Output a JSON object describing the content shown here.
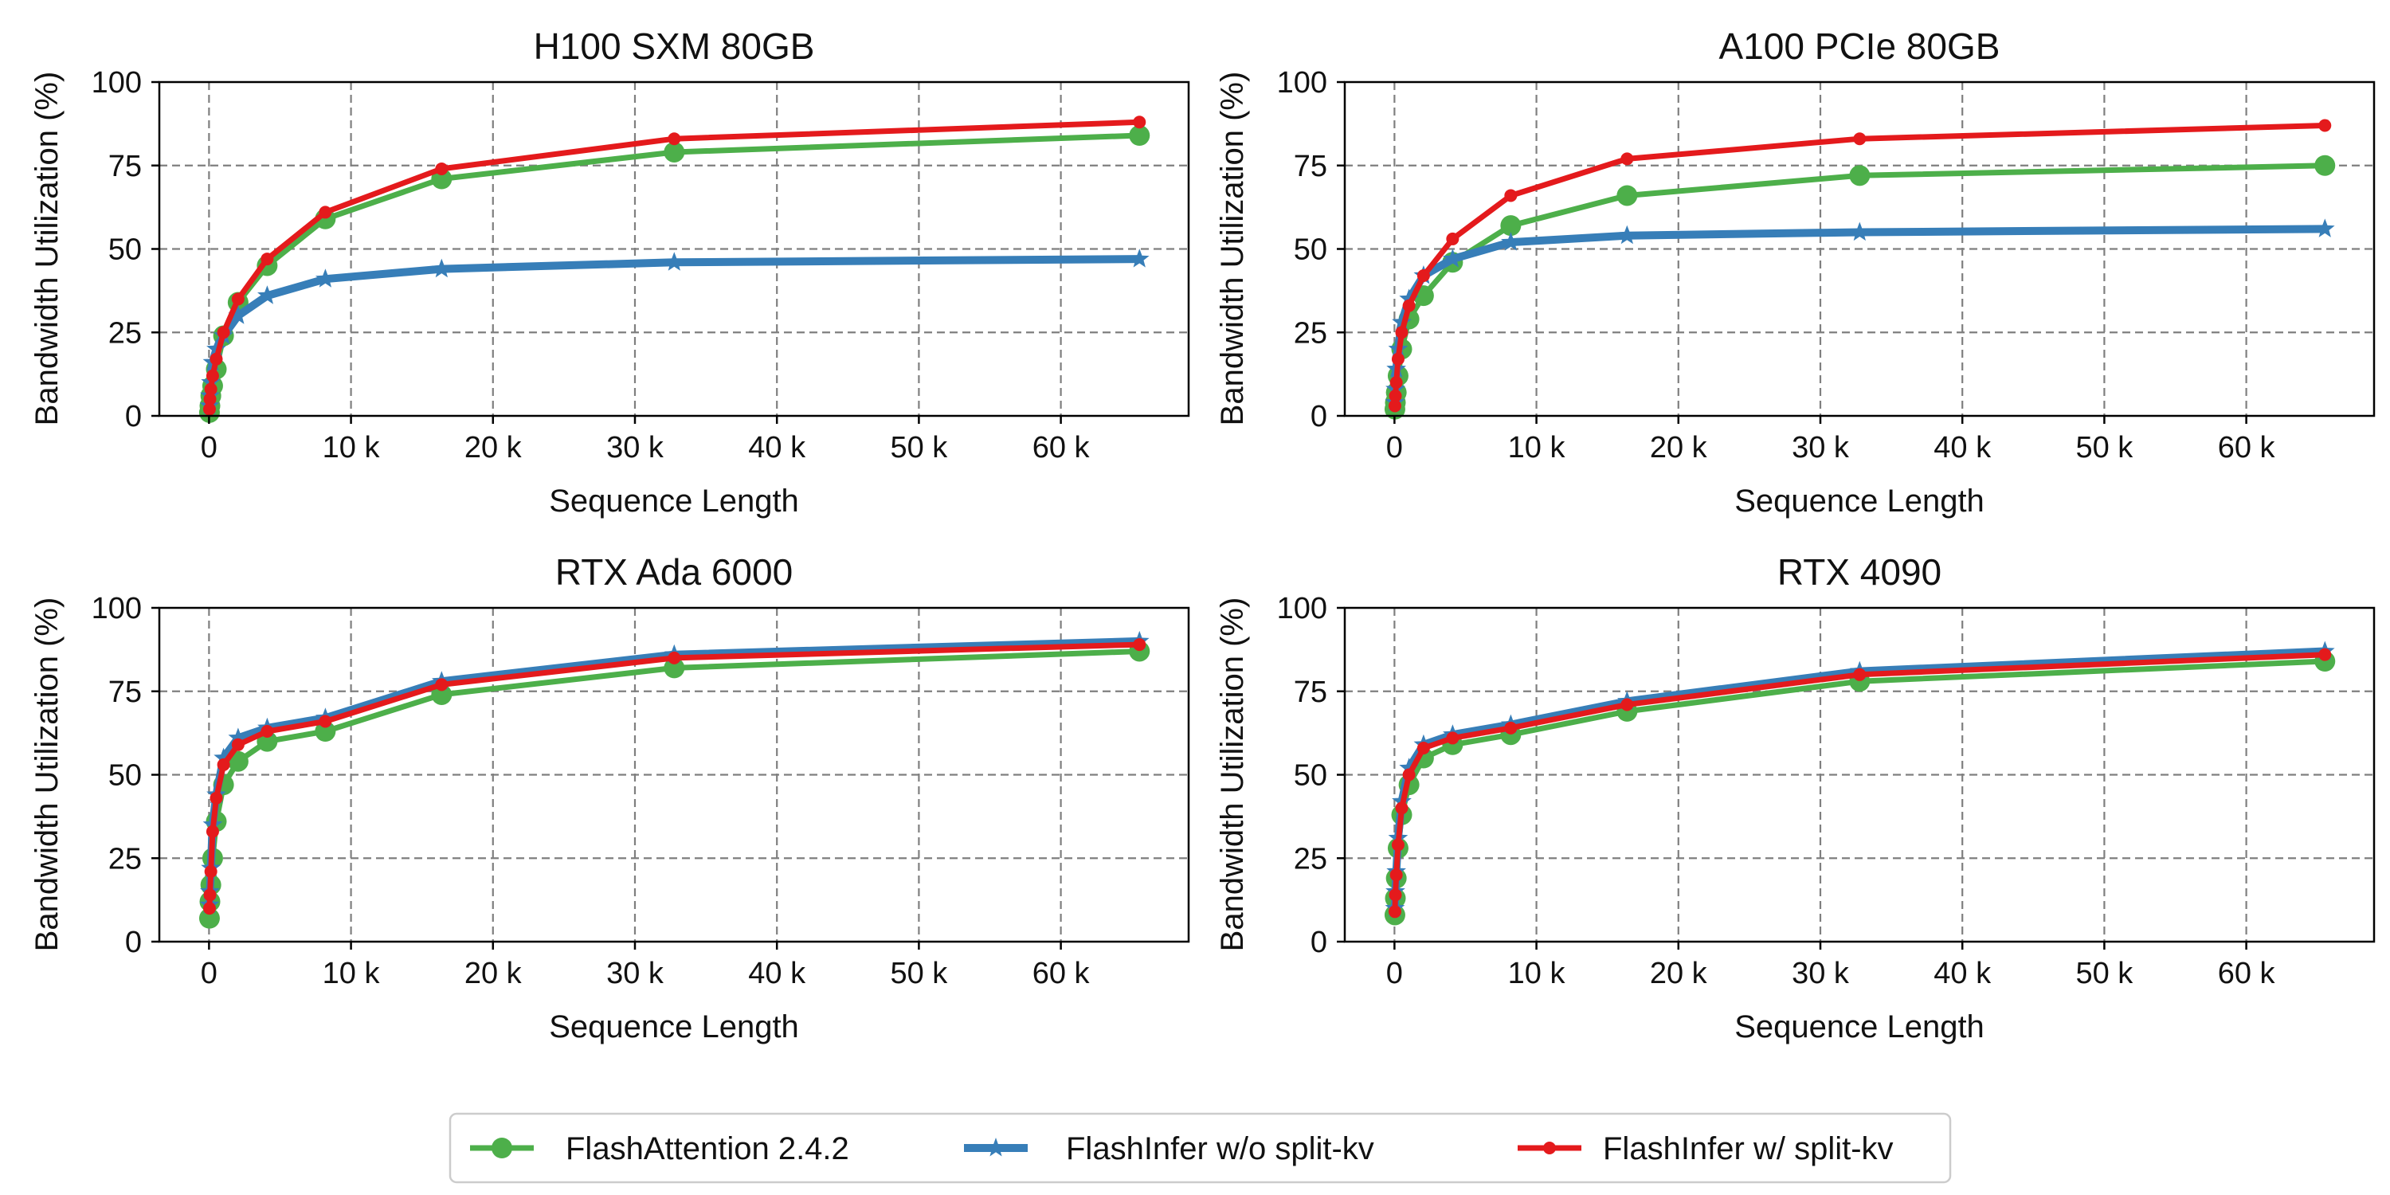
{
  "chart_data": [
    {
      "type": "line",
      "title": "H100 SXM 80GB",
      "xlabel": "Sequence Length",
      "ylabel": "Bandwidth Utilization (%)",
      "xlim": [
        -3500,
        69000
      ],
      "ylim": [
        0,
        100
      ],
      "xticks": [
        0,
        10000,
        20000,
        30000,
        40000,
        50000,
        60000
      ],
      "xtick_labels": [
        "0",
        "10 k",
        "20 k",
        "30 k",
        "40 k",
        "50 k",
        "60 k"
      ],
      "yticks": [
        0,
        25,
        50,
        75,
        100
      ],
      "ytick_labels": [
        "0",
        "25",
        "50",
        "75",
        "100"
      ],
      "grid": true,
      "x": [
        32,
        64,
        128,
        256,
        512,
        1024,
        2048,
        4096,
        8192,
        16384,
        32768,
        65536
      ],
      "series": [
        {
          "name": "FlashAttention 2.4.2",
          "values": [
            1,
            3,
            6,
            9,
            14,
            24,
            34,
            45,
            59,
            71,
            79,
            84
          ]
        },
        {
          "name": "FlashInfer w/o split-kv",
          "values": [
            3,
            6,
            10,
            16,
            20,
            24,
            30,
            36,
            41,
            44,
            46,
            47
          ]
        },
        {
          "name": "FlashInfer w/ split-kv",
          "values": [
            2,
            5,
            8,
            12,
            17,
            25,
            35,
            47,
            61,
            74,
            83,
            88
          ]
        }
      ]
    },
    {
      "type": "line",
      "title": "A100 PCIe 80GB",
      "xlabel": "Sequence Length",
      "ylabel": "Bandwidth Utilization (%)",
      "xlim": [
        -3500,
        69000
      ],
      "ylim": [
        0,
        100
      ],
      "xticks": [
        0,
        10000,
        20000,
        30000,
        40000,
        50000,
        60000
      ],
      "xtick_labels": [
        "0",
        "10 k",
        "20 k",
        "30 k",
        "40 k",
        "50 k",
        "60 k"
      ],
      "yticks": [
        0,
        25,
        50,
        75,
        100
      ],
      "ytick_labels": [
        "0",
        "25",
        "50",
        "75",
        "100"
      ],
      "grid": true,
      "x": [
        32,
        64,
        128,
        256,
        512,
        1024,
        2048,
        4096,
        8192,
        16384,
        32768,
        65536
      ],
      "series": [
        {
          "name": "FlashAttention 2.4.2",
          "values": [
            2,
            4,
            7,
            12,
            20,
            29,
            36,
            46,
            57,
            66,
            72,
            75
          ]
        },
        {
          "name": "FlashInfer w/o split-kv",
          "values": [
            4,
            8,
            14,
            20,
            28,
            35,
            42,
            47,
            52,
            54,
            55,
            56
          ]
        },
        {
          "name": "FlashInfer w/ split-kv",
          "values": [
            3,
            6,
            10,
            17,
            25,
            33,
            42,
            53,
            66,
            77,
            83,
            87
          ]
        }
      ]
    },
    {
      "type": "line",
      "title": "RTX Ada 6000",
      "xlabel": "Sequence Length",
      "ylabel": "Bandwidth Utilization (%)",
      "xlim": [
        -3500,
        69000
      ],
      "ylim": [
        0,
        100
      ],
      "xticks": [
        0,
        10000,
        20000,
        30000,
        40000,
        50000,
        60000
      ],
      "xtick_labels": [
        "0",
        "10 k",
        "20 k",
        "30 k",
        "40 k",
        "50 k",
        "60 k"
      ],
      "yticks": [
        0,
        25,
        50,
        75,
        100
      ],
      "ytick_labels": [
        "0",
        "25",
        "50",
        "75",
        "100"
      ],
      "grid": true,
      "x": [
        32,
        64,
        128,
        256,
        512,
        1024,
        2048,
        4096,
        8192,
        16384,
        32768,
        65536
      ],
      "series": [
        {
          "name": "FlashAttention 2.4.2",
          "values": [
            7,
            12,
            17,
            25,
            36,
            47,
            54,
            60,
            63,
            74,
            82,
            87
          ]
        },
        {
          "name": "FlashInfer w/o split-kv",
          "values": [
            11,
            15,
            22,
            35,
            44,
            55,
            61,
            64,
            67,
            78,
            86,
            90
          ]
        },
        {
          "name": "FlashInfer w/ split-kv",
          "values": [
            10,
            14,
            21,
            33,
            43,
            53,
            59,
            63,
            66,
            77,
            85,
            89
          ]
        }
      ]
    },
    {
      "type": "line",
      "title": "RTX 4090",
      "xlabel": "Sequence Length",
      "ylabel": "Bandwidth Utilization (%)",
      "xlim": [
        -3500,
        69000
      ],
      "ylim": [
        0,
        100
      ],
      "xticks": [
        0,
        10000,
        20000,
        30000,
        40000,
        50000,
        60000
      ],
      "xtick_labels": [
        "0",
        "10 k",
        "20 k",
        "30 k",
        "40 k",
        "50 k",
        "60 k"
      ],
      "yticks": [
        0,
        25,
        50,
        75,
        100
      ],
      "ytick_labels": [
        "0",
        "25",
        "50",
        "75",
        "100"
      ],
      "grid": true,
      "x": [
        32,
        64,
        128,
        256,
        512,
        1024,
        2048,
        4096,
        8192,
        16384,
        32768,
        65536
      ],
      "series": [
        {
          "name": "FlashAttention 2.4.2",
          "values": [
            8,
            13,
            19,
            28,
            38,
            47,
            55,
            59,
            62,
            69,
            78,
            84
          ]
        },
        {
          "name": "FlashInfer w/o split-kv",
          "values": [
            10,
            15,
            21,
            31,
            42,
            52,
            59,
            62,
            65,
            72,
            81,
            87
          ]
        },
        {
          "name": "FlashInfer w/ split-kv",
          "values": [
            9,
            14,
            20,
            29,
            40,
            50,
            58,
            61,
            64,
            71,
            80,
            86
          ]
        }
      ]
    }
  ],
  "legend": {
    "placement": "bottom-center",
    "entries": [
      {
        "name": "FlashAttention 2.4.2",
        "color": "#4daf4a",
        "marker": "circle"
      },
      {
        "name": "FlashInfer w/o split-kv",
        "color": "#377eb8",
        "marker": "star"
      },
      {
        "name": "FlashInfer w/ split-kv",
        "color": "#e41a1c",
        "marker": "dot"
      }
    ]
  },
  "colors": {
    "green": "#4daf4a",
    "blue": "#377eb8",
    "red": "#e41a1c",
    "grid": "#7f7f7f"
  }
}
